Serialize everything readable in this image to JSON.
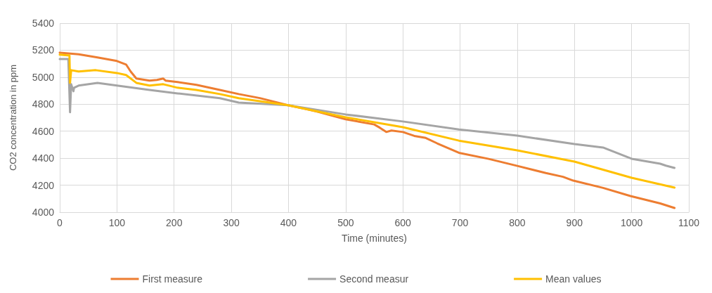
{
  "chart_data": {
    "type": "line",
    "xlabel": "Time (minutes)",
    "ylabel": "CO2 concentration in ppm",
    "xlim": [
      0,
      1100
    ],
    "xticks": [
      0,
      100,
      200,
      300,
      400,
      500,
      600,
      700,
      800,
      900,
      1000,
      1100
    ],
    "ylim": [
      4000,
      5400
    ],
    "yticks": [
      4000,
      4200,
      4400,
      4600,
      4800,
      5000,
      5200,
      5400
    ],
    "grid": true,
    "legend": "bottom",
    "marker": "none",
    "line_style": "solid",
    "series": [
      {
        "name": "First measure",
        "color": "#ed7d31",
        "x": [
          0,
          33,
          66,
          100,
          116,
          124,
          134,
          157,
          170,
          181,
          185,
          206,
          239,
          280,
          313,
          350,
          399,
          430,
          450,
          500,
          550,
          560,
          571,
          580,
          600,
          620,
          640,
          660,
          698,
          750,
          799,
          850,
          880,
          898,
          950,
          998,
          1050,
          1075
        ],
        "values": [
          5182,
          5170,
          5146,
          5120,
          5094,
          5042,
          4990,
          4974,
          4980,
          4990,
          4975,
          4964,
          4943,
          4906,
          4875,
          4845,
          4792,
          4765,
          4745,
          4688,
          4650,
          4625,
          4594,
          4605,
          4594,
          4565,
          4550,
          4510,
          4440,
          4395,
          4344,
          4290,
          4262,
          4234,
          4180,
          4120,
          4065,
          4031
        ]
      },
      {
        "name": "Second measur",
        "color": "#a5a5a5",
        "x": [
          0,
          15,
          18,
          20,
          24,
          25,
          33,
          66,
          100,
          157,
          206,
          280,
          313,
          399,
          500,
          600,
          698,
          800,
          900,
          950,
          1000,
          1050,
          1060,
          1075
        ],
        "values": [
          5135,
          5135,
          4740,
          4948,
          4896,
          4922,
          4938,
          4958,
          4938,
          4906,
          4880,
          4844,
          4812,
          4792,
          4724,
          4672,
          4613,
          4567,
          4505,
          4479,
          4396,
          4359,
          4345,
          4328
        ]
      },
      {
        "name": "Mean values",
        "color": "#ffc000",
        "x": [
          0,
          17,
          18,
          20,
          33,
          63,
          100,
          116,
          134,
          157,
          181,
          206,
          239,
          280,
          313,
          399,
          500,
          600,
          698,
          800,
          900,
          1000,
          1075
        ],
        "values": [
          5167,
          5160,
          4958,
          5052,
          5042,
          5052,
          5031,
          5016,
          4958,
          4938,
          4948,
          4922,
          4906,
          4875,
          4844,
          4792,
          4703,
          4630,
          4530,
          4458,
          4375,
          4255,
          4182
        ]
      }
    ]
  }
}
